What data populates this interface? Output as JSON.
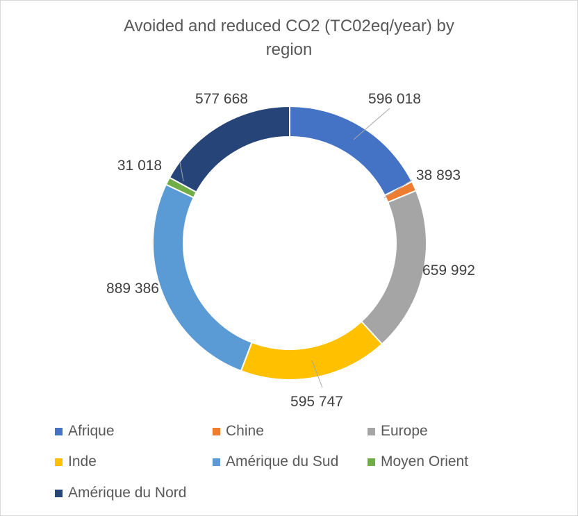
{
  "chart_data": {
    "type": "pie",
    "variant": "doughnut",
    "title": "Avoided and reduced CO2 (TC02eq/year) by region",
    "title_lines": [
      "Avoided and reduced CO2 (TC02eq/year) by",
      "region"
    ],
    "legend_position": "bottom",
    "categories": [
      "Afrique",
      "Chine",
      "Europe",
      "Inde",
      "Amérique du Sud",
      "Moyen Orient",
      "Amérique du Nord"
    ],
    "values": [
      596018,
      38893,
      659992,
      595747,
      889386,
      31018,
      577668
    ],
    "data_labels": [
      "596 018",
      "38 893",
      "659 992",
      "595 747",
      "889 386",
      "31 018",
      "577 668"
    ],
    "colors": [
      "#4472C4",
      "#ED7D31",
      "#A5A5A5",
      "#FFC000",
      "#5B9BD5",
      "#70AD47",
      "#264478"
    ]
  }
}
